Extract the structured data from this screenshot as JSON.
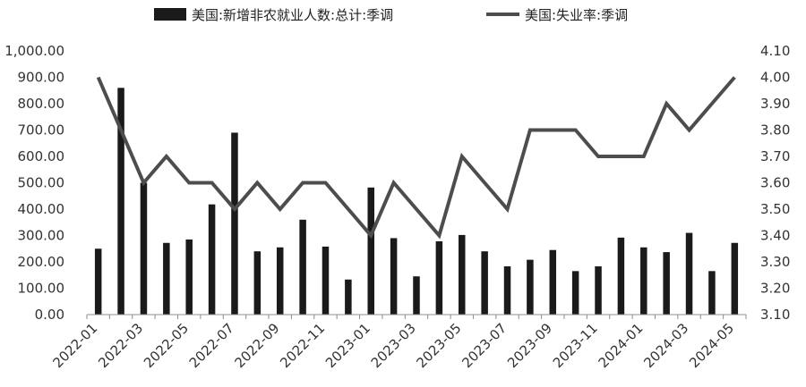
{
  "chart_data": {
    "type": "bar+line",
    "legend": [
      {
        "label": "美国:新增非农就业人数:总计:季调",
        "symbol": "bar"
      },
      {
        "label": "美国:失业率:季调",
        "symbol": "line"
      }
    ],
    "legend_position": "top-center",
    "left_axis": {
      "min": 0,
      "max": 1000,
      "step": 100,
      "tick_labels": [
        "0.00",
        "100.00",
        "200.00",
        "300.00",
        "400.00",
        "500.00",
        "600.00",
        "700.00",
        "800.00",
        "900.00",
        "1,000.00"
      ]
    },
    "right_axis": {
      "min": 3.1,
      "max": 4.1,
      "step": 0.1,
      "tick_labels": [
        "3.10",
        "3.20",
        "3.30",
        "3.40",
        "3.50",
        "3.60",
        "3.70",
        "3.80",
        "3.90",
        "4.00",
        "4.10"
      ]
    },
    "x_tick_labels": [
      "2022-01",
      "2022-03",
      "2022-05",
      "2022-07",
      "2022-09",
      "2022-11",
      "2023-01",
      "2023-03",
      "2023-05",
      "2023-07",
      "2023-09",
      "2023-11",
      "2024-01",
      "2024-03",
      "2024-05"
    ],
    "categories": [
      "2022-01",
      "2022-02",
      "2022-03",
      "2022-04",
      "2022-05",
      "2022-06",
      "2022-07",
      "2022-08",
      "2022-09",
      "2022-10",
      "2022-11",
      "2022-12",
      "2023-01",
      "2023-02",
      "2023-03",
      "2023-04",
      "2023-05",
      "2023-06",
      "2023-07",
      "2023-08",
      "2023-09",
      "2023-10",
      "2023-11",
      "2023-12",
      "2024-01",
      "2024-02",
      "2024-03",
      "2024-04",
      "2024-05"
    ],
    "series": [
      {
        "name": "美国:新增非农就业人数:总计:季调",
        "type": "bar",
        "axis": "left",
        "color": "#1a1a1a",
        "values": [
          250,
          860,
          500,
          272,
          285,
          418,
          690,
          240,
          255,
          360,
          258,
          133,
          482,
          290,
          145,
          278,
          302,
          240,
          183,
          208,
          245,
          165,
          183,
          292,
          255,
          237,
          310,
          165,
          272
        ]
      },
      {
        "name": "美国:失业率:季调",
        "type": "line",
        "axis": "right",
        "color": "#4d4d4d",
        "values": [
          4.0,
          3.8,
          3.6,
          3.7,
          3.6,
          3.6,
          3.5,
          3.6,
          3.5,
          3.6,
          3.6,
          3.5,
          3.4,
          3.6,
          3.5,
          3.4,
          3.7,
          3.6,
          3.5,
          3.8,
          3.8,
          3.8,
          3.7,
          3.7,
          3.7,
          3.9,
          3.8,
          3.9,
          4.0
        ]
      }
    ],
    "grid": false
  }
}
